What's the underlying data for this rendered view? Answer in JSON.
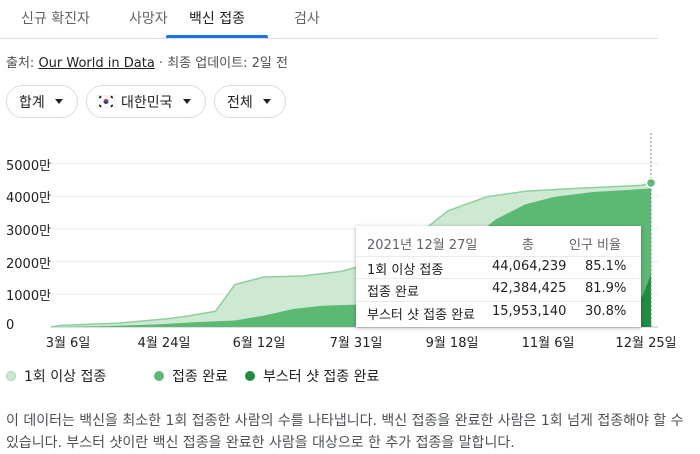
{
  "tabs": [
    {
      "label": "신규 확진자"
    },
    {
      "label": "사망자"
    },
    {
      "label": "백신 접종"
    },
    {
      "label": "검사"
    }
  ],
  "source": {
    "prefix": "출처: ",
    "link": "Our World in Data",
    "suffix": " · 최종 업데이트: 2일 전"
  },
  "filters": {
    "total": "합계",
    "country": "대한민국",
    "range": "전체"
  },
  "colors": {
    "dose1": "#cde9d2",
    "full": "#5bb974",
    "booster": "#1e8e3e",
    "accent": "#1a73e8"
  },
  "chart_data": {
    "type": "area",
    "yticks": [
      "0",
      "1000만",
      "2000만",
      "3000만",
      "4000만",
      "5000만"
    ],
    "ylim": [
      0,
      52000000
    ],
    "xticks": [
      "3월 6일",
      "4월 24일",
      "6월 12일",
      "7월 31일",
      "9월 18일",
      "11월 6일",
      "12월 25일"
    ],
    "series": [
      {
        "name": "1회 이상 접종",
        "values": [
          [
            0,
            0
          ],
          [
            5,
            500000
          ],
          [
            35,
            1200000
          ],
          [
            60,
            2500000
          ],
          [
            70,
            3300000
          ],
          [
            85,
            4800000
          ],
          [
            95,
            13000000
          ],
          [
            110,
            15300000
          ],
          [
            130,
            15600000
          ],
          [
            150,
            17000000
          ],
          [
            165,
            19500000
          ],
          [
            185,
            26000000
          ],
          [
            205,
            35500000
          ],
          [
            225,
            39800000
          ],
          [
            245,
            41500000
          ],
          [
            265,
            42200000
          ],
          [
            285,
            42800000
          ],
          [
            305,
            43300000
          ],
          [
            310,
            44064239
          ]
        ]
      },
      {
        "name": "접종 완료",
        "values": [
          [
            0,
            0
          ],
          [
            30,
            300000
          ],
          [
            55,
            800000
          ],
          [
            75,
            1500000
          ],
          [
            95,
            2000000
          ],
          [
            110,
            3500000
          ],
          [
            125,
            5500000
          ],
          [
            140,
            6500000
          ],
          [
            165,
            7000000
          ],
          [
            180,
            9000000
          ],
          [
            190,
            12000000
          ],
          [
            200,
            18000000
          ],
          [
            215,
            26000000
          ],
          [
            230,
            33000000
          ],
          [
            245,
            37500000
          ],
          [
            260,
            39800000
          ],
          [
            280,
            41300000
          ],
          [
            300,
            42000000
          ],
          [
            310,
            42384425
          ]
        ]
      },
      {
        "name": "부스터 샷 접종 완료",
        "values": [
          [
            0,
            0
          ],
          [
            260,
            0
          ],
          [
            275,
            400000
          ],
          [
            290,
            1500000
          ],
          [
            300,
            4000000
          ],
          [
            306,
            10000000
          ],
          [
            310,
            15953140
          ]
        ]
      }
    ],
    "xlim": [
      0,
      310
    ],
    "legend": "bottom"
  },
  "tooltip": {
    "date": "2021년 12월 27일",
    "col_total": "총",
    "col_pct": "인구 비율",
    "rows": [
      {
        "label": "1회 이상 접종",
        "total": "44,064,239",
        "pct": "85.1%"
      },
      {
        "label": "접종 완료",
        "total": "42,384,425",
        "pct": "81.9%"
      },
      {
        "label": "부스터 샷 접종 완료",
        "total": "15,953,140",
        "pct": "30.8%"
      }
    ]
  },
  "description": "이 데이터는 백신을 최소한 1회 접종한 사람의 수를 나타냅니다. 백신 접종을 완료한 사람은 1회 넘게 접종해야 할 수 있습니다. 부스터 샷이란 백신 접종을 완료한 사람을 대상으로 한 추가 접종을 말합니다."
}
